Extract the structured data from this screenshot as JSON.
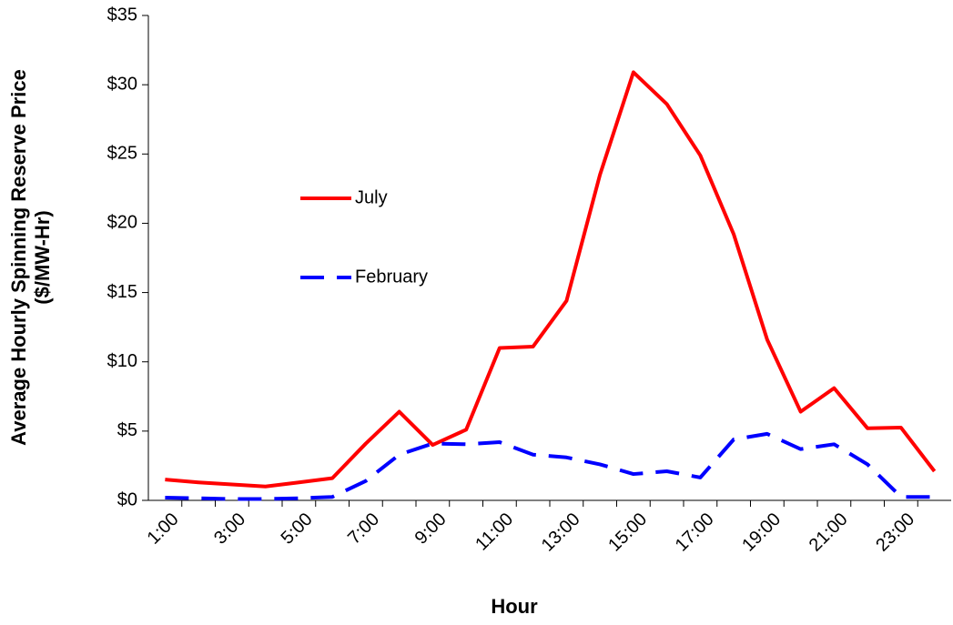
{
  "chart_data": {
    "type": "line",
    "y_label": [
      "Average Hourly Spinning Reserve Price",
      "($/MW-Hr)"
    ],
    "x_label": "Hour",
    "categories": [
      "1:00",
      null,
      "3:00",
      null,
      "5:00",
      null,
      "7:00",
      null,
      "9:00",
      null,
      "11:00",
      null,
      "13:00",
      null,
      "15:00",
      null,
      "17:00",
      null,
      "19:00",
      null,
      "21:00",
      null,
      "23:00",
      null
    ],
    "series": [
      {
        "name": "July",
        "color": "#ff0000",
        "dashed": false,
        "values": [
          1.5,
          1.3,
          1.15,
          1.0,
          1.3,
          1.6,
          4.1,
          6.4,
          4.0,
          5.1,
          11.0,
          11.1,
          14.4,
          23.5,
          30.9,
          28.6,
          24.9,
          19.2,
          11.6,
          6.4,
          8.1,
          5.2,
          5.25,
          2.1
        ]
      },
      {
        "name": "February",
        "color": "#0000ff",
        "dashed": true,
        "values": [
          0.2,
          0.15,
          0.1,
          0.1,
          0.15,
          0.25,
          1.4,
          3.3,
          4.1,
          4.05,
          4.2,
          3.3,
          3.1,
          2.6,
          1.9,
          2.1,
          1.65,
          4.4,
          4.8,
          3.7,
          4.05,
          2.6,
          0.25,
          0.25
        ]
      }
    ],
    "ylim": [
      0,
      35
    ],
    "yticks": [
      {
        "value": 0,
        "label": "$0"
      },
      {
        "value": 5,
        "label": "$5"
      },
      {
        "value": 10,
        "label": "$10"
      },
      {
        "value": 15,
        "label": "$15"
      },
      {
        "value": 20,
        "label": "$20"
      },
      {
        "value": 25,
        "label": "$25"
      },
      {
        "value": 30,
        "label": "$30"
      },
      {
        "value": 35,
        "label": "$35"
      }
    ],
    "grid": false
  }
}
